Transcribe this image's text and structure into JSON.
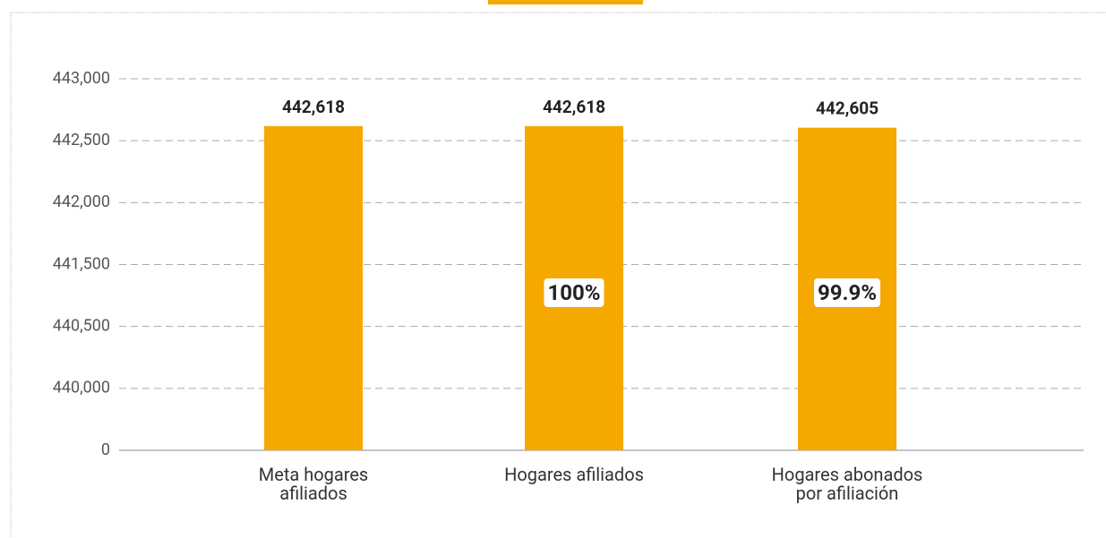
{
  "chart_data": {
    "type": "bar",
    "categories": [
      "Meta hogares afiliados",
      "Hogares afiliados",
      "Hogares abonados por afiliación"
    ],
    "values": [
      442618,
      442618,
      442605
    ],
    "value_labels": [
      "442,618",
      "442,618",
      "442,605"
    ],
    "color": "#f5a800",
    "ylim": [
      0,
      443000
    ],
    "yticks": [
      0,
      {
        "value": 440000,
        "label": "440,000"
      },
      {
        "value": 440500,
        "label": "440,500"
      },
      {
        "value": 441500,
        "label": "441,500"
      },
      {
        "value": 442000,
        "label": "442,000"
      },
      {
        "value": 442500,
        "label": "442,500"
      },
      {
        "value": 443000,
        "label": "443,000"
      }
    ],
    "grid": true,
    "annotations": [
      {
        "category": "Hogares afiliados",
        "text": "100%"
      },
      {
        "category": "Hogares abonados por afiliación",
        "text": "99.9%"
      }
    ]
  }
}
